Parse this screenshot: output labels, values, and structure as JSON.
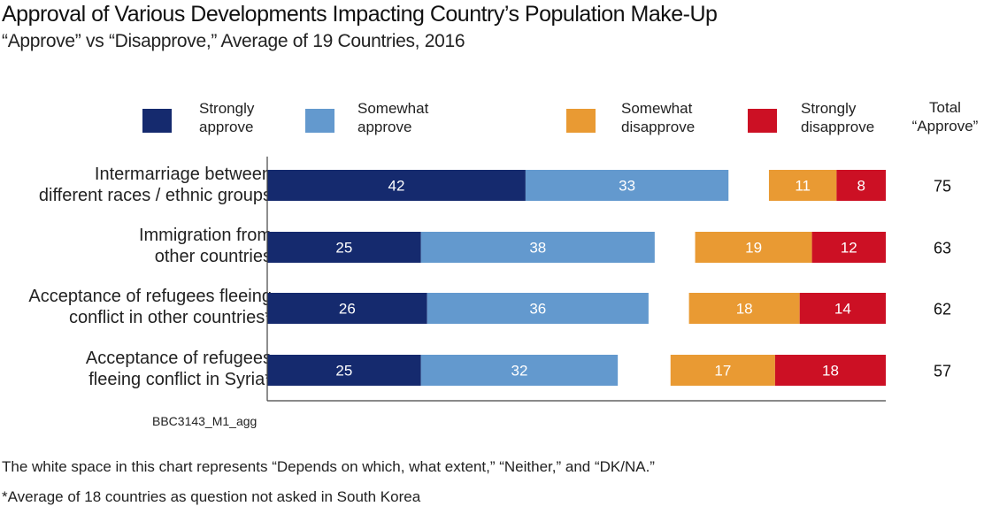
{
  "chart_data": {
    "type": "bar",
    "orientation": "horizontal-diverging-stacked",
    "title": "Approval of Various Developments Impacting Country’s Population Make-Up",
    "subtitle": "“Approve” vs “Disapprove,” Average of 19 Countries, 2016",
    "categories": [
      [
        "Intermarriage between",
        "different races / ethnic groups"
      ],
      [
        "Immigration from",
        "other countries"
      ],
      [
        "Acceptance of refugees fleeing",
        "conflict in other countries*"
      ],
      [
        "Acceptance of refugees",
        "fleeing conflict in Syria*"
      ]
    ],
    "series": [
      {
        "name": "Strongly approve",
        "legend": [
          "Strongly",
          "approve"
        ],
        "color": "#152a6e",
        "side": "approve",
        "values": [
          42,
          25,
          26,
          25
        ]
      },
      {
        "name": "Somewhat approve",
        "legend": [
          "Somewhat",
          "approve"
        ],
        "color": "#6399ce",
        "side": "approve",
        "values": [
          33,
          38,
          36,
          32
        ]
      },
      {
        "name": "Somewhat disapprove",
        "legend": [
          "Somewhat",
          "disapprove"
        ],
        "color": "#e99a33",
        "side": "disapprove",
        "values": [
          11,
          19,
          18,
          17
        ]
      },
      {
        "name": "Strongly disapprove",
        "legend": [
          "Strongly",
          "disapprove"
        ],
        "color": "#cc1024",
        "side": "disapprove",
        "values": [
          8,
          12,
          14,
          18
        ]
      }
    ],
    "totals_header": [
      "Total",
      "“Approve”"
    ],
    "totals": [
      75,
      63,
      62,
      57
    ],
    "legend_position": "top",
    "grid": false,
    "xlim": [
      0,
      100
    ]
  },
  "source": "BBC3143_M1_agg",
  "notes": [
    "The white space in this chart represents “Depends on which, what extent,” “Neither,” and “DK/NA.”",
    "*Average of 18 countries as question not asked in South Korea"
  ]
}
